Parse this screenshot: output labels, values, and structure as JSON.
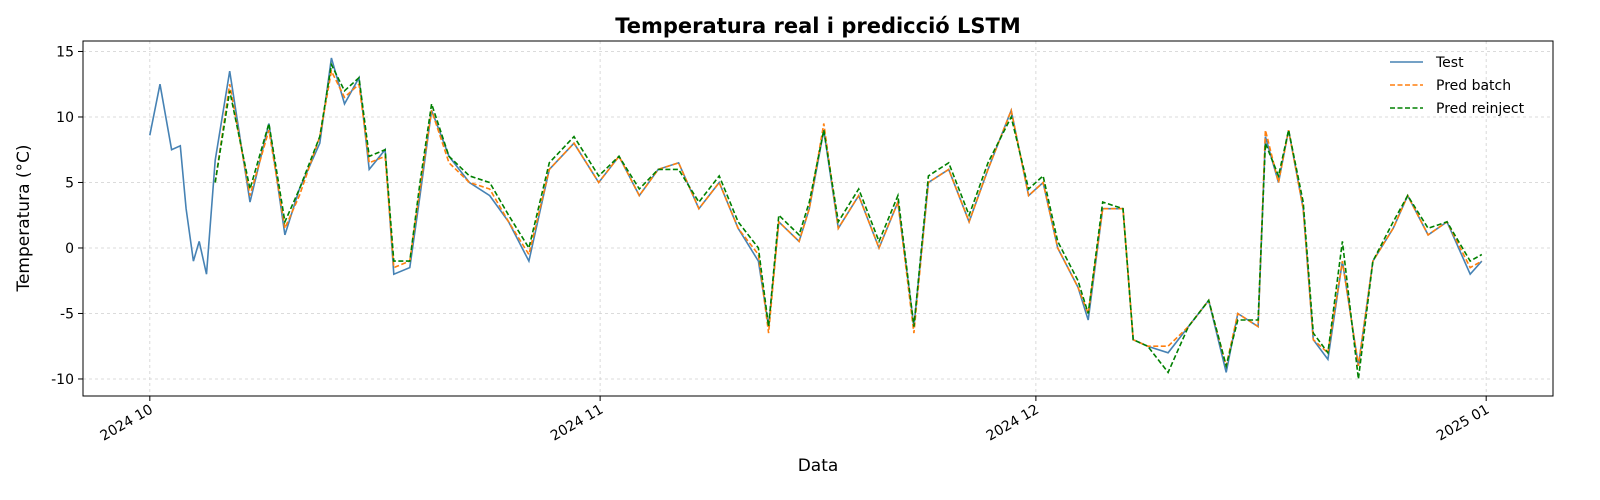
{
  "chart_data": {
    "type": "line",
    "title": "Temperatura real i predicció LSTM",
    "xlabel": "Data",
    "ylabel": "Temperatura (°C)",
    "x": [
      0,
      0.7,
      1.5,
      2.1,
      2.5,
      3.0,
      3.4,
      3.9,
      4.5,
      5.5,
      6.9,
      8.2,
      9.3,
      10.3,
      11.7,
      12.5,
      13.4,
      14.4,
      15.1,
      16.2,
      16.8,
      17.9,
      18.6,
      19.4,
      20.6,
      22,
      23.4,
      24.7,
      26.1,
      27.5,
      29.2,
      30.9,
      32.3,
      33.7,
      35,
      36.4,
      37.8,
      39.2,
      40.5,
      41.9,
      42.6,
      43.3,
      44.7,
      45.4,
      46.4,
      47.4,
      48.8,
      50.2,
      51.5,
      52.6,
      53.6,
      55,
      56.4,
      57.7,
      59.3,
      60.5,
      61.5,
      62.5,
      63.9,
      64.6,
      65.6,
      67,
      67.7,
      68.7,
      70.1,
      71.5,
      72.9,
      74.1,
      74.9,
      76.3,
      76.8,
      77.7,
      78.4,
      79.4,
      80.1,
      81.1,
      82.1,
      83.2,
      84.2,
      85.6,
      86.6,
      88,
      89.3,
      90.9,
      91.7
    ],
    "series": [
      {
        "name": "Test",
        "color": "#4682b4",
        "dashed": false,
        "values": [
          8.6,
          12.5,
          7.5,
          7.8,
          3,
          -1,
          0.5,
          -2,
          6.7,
          13.5,
          3.5,
          9.5,
          1,
          4.5,
          8,
          14.5,
          11,
          13,
          6,
          7.5,
          -2,
          -1.5,
          4,
          10.5,
          7,
          5,
          4,
          2,
          -1,
          6,
          8,
          5,
          7,
          4,
          6,
          6.5,
          3,
          5,
          1.5,
          -1,
          -6,
          2,
          0.5,
          3,
          9,
          1.5,
          4,
          0,
          3.5,
          -6,
          5,
          6,
          2,
          6,
          10.5,
          4,
          5,
          0,
          -3,
          -5.5,
          3,
          3,
          -7,
          -7.5,
          -8,
          -6,
          -4,
          -9.5,
          -5,
          -6,
          8.5,
          5,
          9,
          3,
          -7,
          -8.5,
          -1,
          -9,
          -1,
          1.5,
          4,
          1,
          2,
          -2,
          -1
        ]
      },
      {
        "name": "Pred batch",
        "color": "#ff7f0e",
        "dashed": true,
        "values": [
          null,
          null,
          null,
          null,
          null,
          null,
          null,
          null,
          5,
          12.5,
          4,
          9,
          1.5,
          4,
          8.5,
          13.5,
          11.5,
          12.5,
          6.5,
          7,
          -1.5,
          -1,
          4.5,
          10.5,
          6.5,
          5,
          4.5,
          2,
          -0.5,
          6,
          8,
          5,
          7,
          4,
          6,
          6.5,
          3,
          5,
          1.5,
          -0.5,
          -6.5,
          2,
          0.5,
          3,
          9.5,
          1.5,
          4,
          0,
          3.5,
          -6.5,
          5,
          6,
          2,
          6,
          10.5,
          4,
          5,
          0,
          -3,
          -5,
          3,
          3,
          -7,
          -7.5,
          -7.5,
          -6,
          -4,
          -9,
          -5,
          -6,
          9,
          5,
          9,
          3,
          -7,
          -8,
          -1,
          -9,
          -1,
          1.5,
          4,
          1,
          2,
          -1.5,
          -1
        ]
      },
      {
        "name": "Pred reinject",
        "color": "#008000",
        "dashed": true,
        "values": [
          null,
          null,
          null,
          null,
          null,
          null,
          null,
          null,
          5,
          12,
          4.5,
          9.5,
          2,
          4.5,
          8.5,
          14,
          12,
          13,
          7,
          7.5,
          -1,
          -1,
          5,
          11,
          7,
          5.5,
          5,
          2.5,
          0,
          6.5,
          8.5,
          5.5,
          7,
          4.5,
          6,
          6,
          3.5,
          5.5,
          2,
          0,
          -6,
          2.5,
          1,
          3.5,
          9,
          2,
          4.5,
          0.5,
          4,
          -6,
          5.5,
          6.5,
          2.5,
          6.5,
          10,
          4.5,
          5.5,
          0.5,
          -2.5,
          -5,
          3.5,
          3,
          -7,
          -7.5,
          -9.5,
          -6,
          -4,
          -9,
          -5.5,
          -5.5,
          8,
          5.5,
          9,
          3.5,
          -6.5,
          -8,
          0.5,
          -10,
          -1,
          2,
          4,
          1.5,
          2,
          -1,
          -0.5
        ]
      }
    ],
    "xlim": [
      -4.6,
      96.6
    ],
    "xticks": [
      {
        "value": 0,
        "label": "2024 10"
      },
      {
        "value": 31,
        "label": "2024 11"
      },
      {
        "value": 61,
        "label": "2024 12"
      },
      {
        "value": 92,
        "label": "2025 01"
      }
    ],
    "ylim": [
      -11.3,
      15.8
    ],
    "yticks": [
      -10,
      -5,
      0,
      5,
      10,
      15
    ],
    "grid": true,
    "legend": "upper right"
  }
}
